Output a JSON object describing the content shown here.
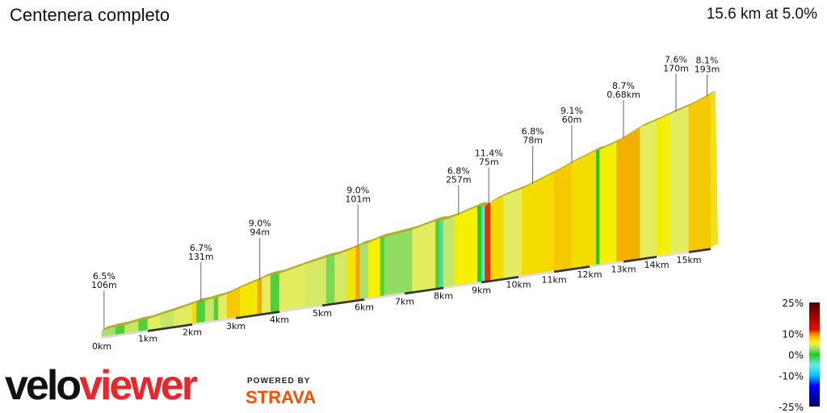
{
  "header": {
    "title": "Centenera completo",
    "summary": "15.6 km at 5.0%"
  },
  "chart_data": {
    "type": "area",
    "title": "Centenera completo",
    "total_distance_km": 15.6,
    "average_grade_pct": 5.0,
    "x_ticks": [
      "0km",
      "1km",
      "2km",
      "3km",
      "4km",
      "5km",
      "6km",
      "7km",
      "8km",
      "9km",
      "10km",
      "11km",
      "12km",
      "13km",
      "14km",
      "15km"
    ],
    "segments": [
      [
        0,
        0.3,
        3
      ],
      [
        0.3,
        0.5,
        1
      ],
      [
        0.5,
        0.8,
        4
      ],
      [
        0.8,
        1.0,
        1
      ],
      [
        1.0,
        1.3,
        5
      ],
      [
        1.3,
        1.6,
        4
      ],
      [
        1.6,
        2.0,
        5
      ],
      [
        2.0,
        2.1,
        7
      ],
      [
        2.1,
        2.3,
        1
      ],
      [
        2.3,
        2.5,
        4
      ],
      [
        2.5,
        2.6,
        1
      ],
      [
        2.6,
        2.8,
        5
      ],
      [
        2.8,
        3.1,
        8
      ],
      [
        3.1,
        3.5,
        6.5
      ],
      [
        3.5,
        3.6,
        9
      ],
      [
        3.6,
        3.8,
        5
      ],
      [
        3.8,
        4.0,
        1
      ],
      [
        4.0,
        4.6,
        5
      ],
      [
        4.6,
        5.1,
        4.5
      ],
      [
        5.1,
        5.3,
        2
      ],
      [
        5.3,
        5.6,
        4.5
      ],
      [
        5.6,
        5.8,
        6.5
      ],
      [
        5.8,
        5.9,
        9
      ],
      [
        5.9,
        6.1,
        3
      ],
      [
        6.1,
        6.4,
        6
      ],
      [
        6.4,
        6.5,
        1
      ],
      [
        6.5,
        7.2,
        2.5
      ],
      [
        7.2,
        7.8,
        5
      ],
      [
        7.8,
        7.9,
        1
      ],
      [
        7.9,
        8.0,
        -3
      ],
      [
        8.0,
        8.3,
        4
      ],
      [
        8.3,
        8.9,
        6
      ],
      [
        8.9,
        9.0,
        0
      ],
      [
        9.0,
        9.05,
        -3
      ],
      [
        9.05,
        9.1,
        -6
      ],
      [
        9.1,
        9.25,
        11.4
      ],
      [
        9.25,
        9.6,
        7
      ],
      [
        9.6,
        10.1,
        5
      ],
      [
        10.1,
        11.0,
        7
      ],
      [
        11.0,
        11.5,
        8
      ],
      [
        11.5,
        12.2,
        7
      ],
      [
        12.2,
        12.3,
        0
      ],
      [
        12.3,
        12.8,
        6
      ],
      [
        12.8,
        13.5,
        8.7
      ],
      [
        13.5,
        14.0,
        5
      ],
      [
        14.0,
        14.4,
        6
      ],
      [
        14.4,
        15.0,
        5
      ],
      [
        15.0,
        15.6,
        8
      ]
    ],
    "annotations": [
      {
        "km": 0.05,
        "grade": "6.5%",
        "length": "106m"
      },
      {
        "km": 2.2,
        "grade": "6.7%",
        "length": "131m"
      },
      {
        "km": 3.55,
        "grade": "9.0%",
        "length": "94m"
      },
      {
        "km": 5.85,
        "grade": "9.0%",
        "length": "101m"
      },
      {
        "km": 8.4,
        "grade": "6.8%",
        "length": "257m"
      },
      {
        "km": 9.2,
        "grade": "11.4%",
        "length": "75m"
      },
      {
        "km": 10.4,
        "grade": "6.8%",
        "length": "78m"
      },
      {
        "km": 11.5,
        "grade": "9.1%",
        "length": "60m"
      },
      {
        "km": 13.0,
        "grade": "8.7%",
        "length": "0.68km"
      },
      {
        "km": 14.6,
        "grade": "7.6%",
        "length": "170m"
      },
      {
        "km": 15.5,
        "grade": "8.1%",
        "length": "193m"
      }
    ],
    "legend": {
      "labels": [
        "25%",
        "10%",
        "0%",
        "-10%",
        "-25%"
      ],
      "values": [
        25,
        10,
        0,
        -10,
        -25
      ],
      "colors": {
        "-25": "#000060",
        "-15": "#0000ff",
        "-10": "#00c8ff",
        "-5": "#70e8e8",
        "0": "#20c820",
        "3": "#a8e070",
        "5": "#e4ec60",
        "6": "#f5f000",
        "8": "#f5c800",
        "10": "#f08000",
        "12": "#e01000",
        "25": "#500000"
      }
    }
  },
  "branding": {
    "logo_part1": "velo",
    "logo_part2": "viewer",
    "powered_by": "POWERED BY",
    "strava": "STRAVA"
  }
}
